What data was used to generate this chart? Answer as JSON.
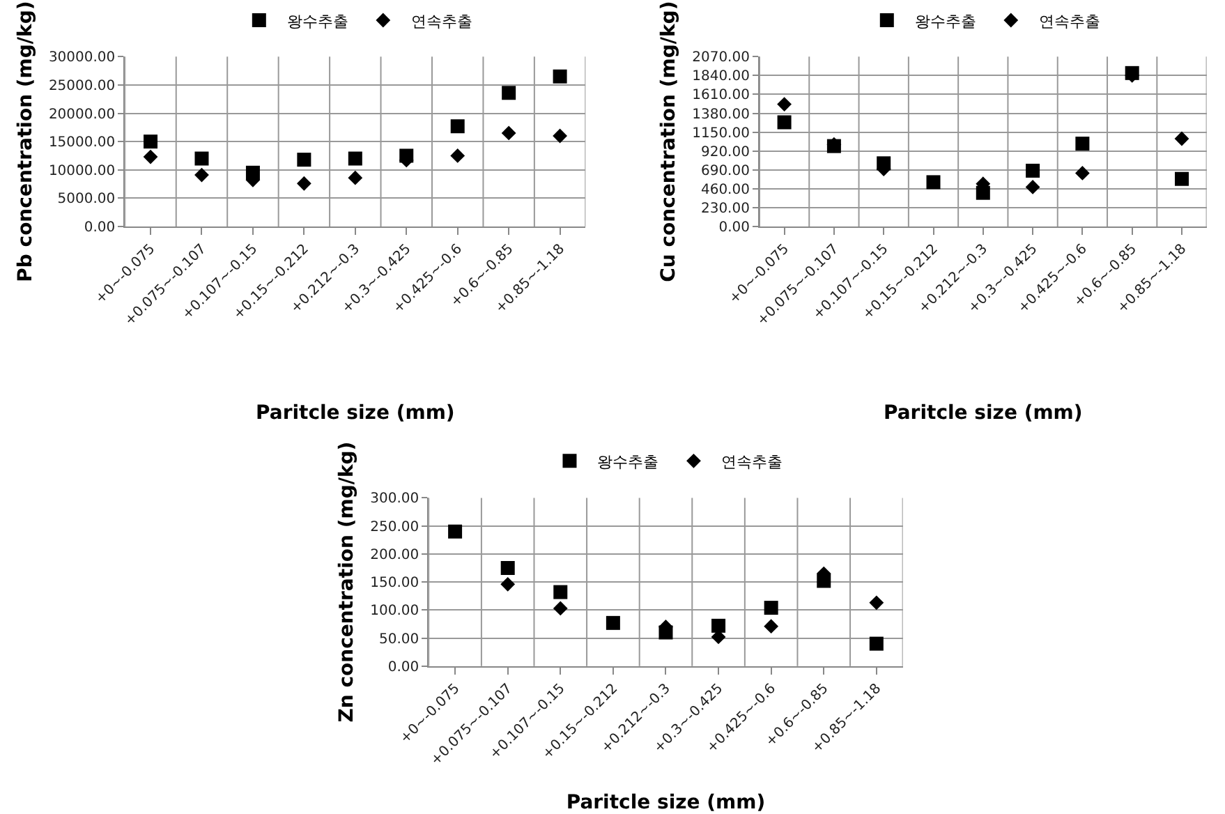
{
  "chart_data": [
    {
      "type": "scatter",
      "xlabel": "Paritcle size (mm)",
      "ylabel": "Pb concentration (mg/kg)",
      "categories": [
        "+0~-0.075",
        "+0.075~-0.107",
        "+0.107~-0.15",
        "+0.15~-0.212",
        "+0.212~-0.3",
        "+0.3~-0.425",
        "+0.425~-0.6",
        "+0.6~-0.85",
        "+0.85~-1.18"
      ],
      "series": [
        {
          "name": "왕수추출",
          "color": "#000000",
          "marker": "square",
          "values": [
            15000,
            12000,
            9500,
            11800,
            12000,
            12500,
            17700,
            23600,
            26500
          ]
        },
        {
          "name": "연속추출",
          "color": "#000000",
          "marker": "diamond",
          "values": [
            12300,
            9100,
            8200,
            7600,
            8600,
            11700,
            12500,
            16500,
            16000
          ]
        }
      ],
      "ylim": [
        0,
        30000
      ],
      "yticks": [
        {
          "value": 0,
          "label": "0.00"
        },
        {
          "value": 5000,
          "label": "5000.00"
        },
        {
          "value": 10000,
          "label": "10000.00"
        },
        {
          "value": 15000,
          "label": "15000.00"
        },
        {
          "value": 20000,
          "label": "20000.00"
        },
        {
          "value": 25000,
          "label": "25000.00"
        },
        {
          "value": 30000,
          "label": "30000.00"
        }
      ],
      "grid": true,
      "legend": "top"
    },
    {
      "type": "scatter",
      "xlabel": "Paritcle size (mm)",
      "ylabel": "Cu concentration (mg/kg)",
      "categories": [
        "+0~-0.075",
        "+0.075~-0.107",
        "+0.107~-0.15",
        "+0.15~-0.212",
        "+0.212~-0.3",
        "+0.3~-0.425",
        "+0.425~-0.6",
        "+0.6~-0.85",
        "+0.85~-1.18"
      ],
      "series": [
        {
          "name": "왕수추출",
          "color": "#000000",
          "marker": "square",
          "values": [
            1270,
            980,
            770,
            540,
            410,
            680,
            1010,
            1870,
            580
          ]
        },
        {
          "name": "연속추출",
          "color": "#000000",
          "marker": "diamond",
          "values": [
            1490,
            1000,
            700,
            null,
            520,
            480,
            650,
            1840,
            1070
          ]
        }
      ],
      "ylim": [
        0,
        2070
      ],
      "yticks": [
        {
          "value": 0,
          "label": "0.00"
        },
        {
          "value": 230,
          "label": "230.00"
        },
        {
          "value": 460,
          "label": "460.00"
        },
        {
          "value": 690,
          "label": "690.00"
        },
        {
          "value": 920,
          "label": "920.00"
        },
        {
          "value": 1150,
          "label": "1150.00"
        },
        {
          "value": 1380,
          "label": "1380.00"
        },
        {
          "value": 1610,
          "label": "1610.00"
        },
        {
          "value": 1840,
          "label": "1840.00"
        },
        {
          "value": 2070,
          "label": "2070.00"
        }
      ],
      "grid": true,
      "legend": "top"
    },
    {
      "type": "scatter",
      "xlabel": "Paritcle size (mm)",
      "ylabel": "Zn concentration (mg/kg)",
      "categories": [
        "+0~-0.075",
        "+0.075~-0.107",
        "+0.107~-0.15",
        "+0.15~-0.212",
        "+0.212~-0.3",
        "+0.3~-0.425",
        "+0.425~-0.6",
        "+0.6~-0.85",
        "+0.85~-1.18"
      ],
      "series": [
        {
          "name": "왕수추출",
          "color": "#000000",
          "marker": "square",
          "values": [
            240,
            175,
            132,
            77,
            60,
            72,
            104,
            152,
            40
          ]
        },
        {
          "name": "연속추출",
          "color": "#000000",
          "marker": "diamond",
          "values": [
            null,
            146,
            103,
            null,
            70,
            52,
            71,
            165,
            113
          ]
        }
      ],
      "ylim": [
        0,
        300
      ],
      "yticks": [
        {
          "value": 0,
          "label": "0.00"
        },
        {
          "value": 50,
          "label": "50.00"
        },
        {
          "value": 100,
          "label": "100.00"
        },
        {
          "value": 150,
          "label": "150.00"
        },
        {
          "value": 200,
          "label": "200.00"
        },
        {
          "value": 250,
          "label": "250.00"
        },
        {
          "value": 300,
          "label": "300.00"
        }
      ],
      "grid": true,
      "legend": "top"
    }
  ]
}
